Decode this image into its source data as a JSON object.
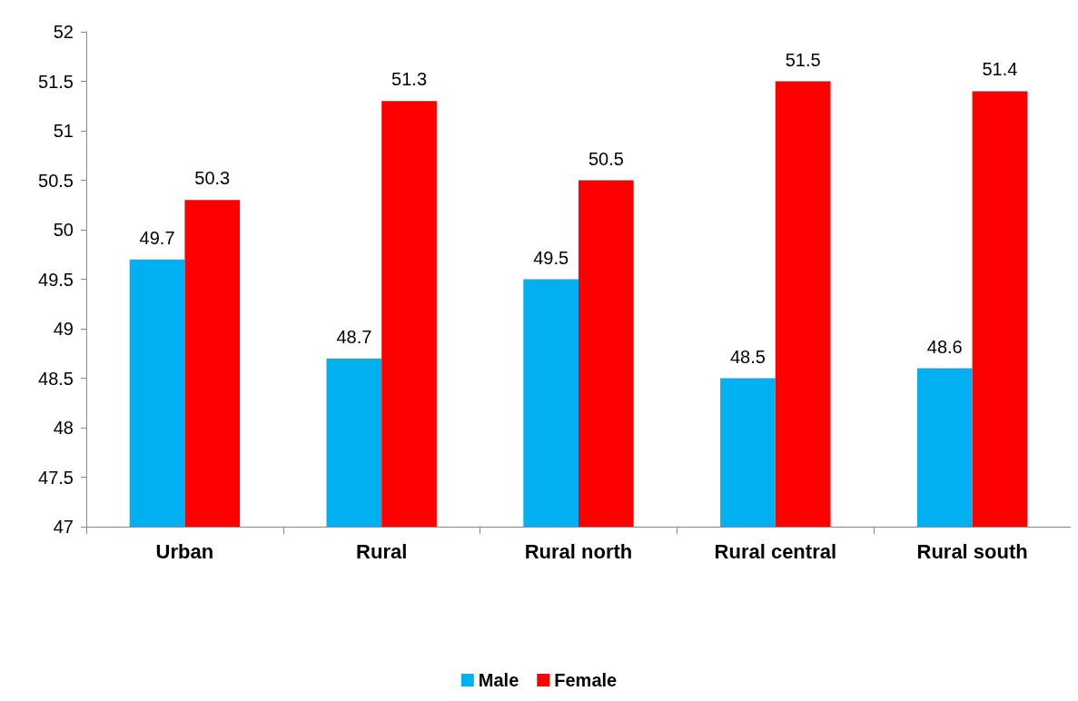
{
  "chart_data": {
    "type": "bar",
    "categories": [
      "Urban",
      "Rural",
      "Rural north",
      "Rural central",
      "Rural south"
    ],
    "series": [
      {
        "name": "Male",
        "color": "#00b0f0",
        "values": [
          49.7,
          48.7,
          49.5,
          48.5,
          48.6
        ]
      },
      {
        "name": "Female",
        "color": "#ff0000",
        "values": [
          50.3,
          51.3,
          50.5,
          51.5,
          51.4
        ]
      }
    ],
    "ylim": [
      47,
      52
    ],
    "yticks": [
      47,
      47.5,
      48,
      48.5,
      49,
      49.5,
      50,
      50.5,
      51,
      51.5,
      52
    ],
    "grid": false,
    "legend": "bottom",
    "data_labels": true
  }
}
